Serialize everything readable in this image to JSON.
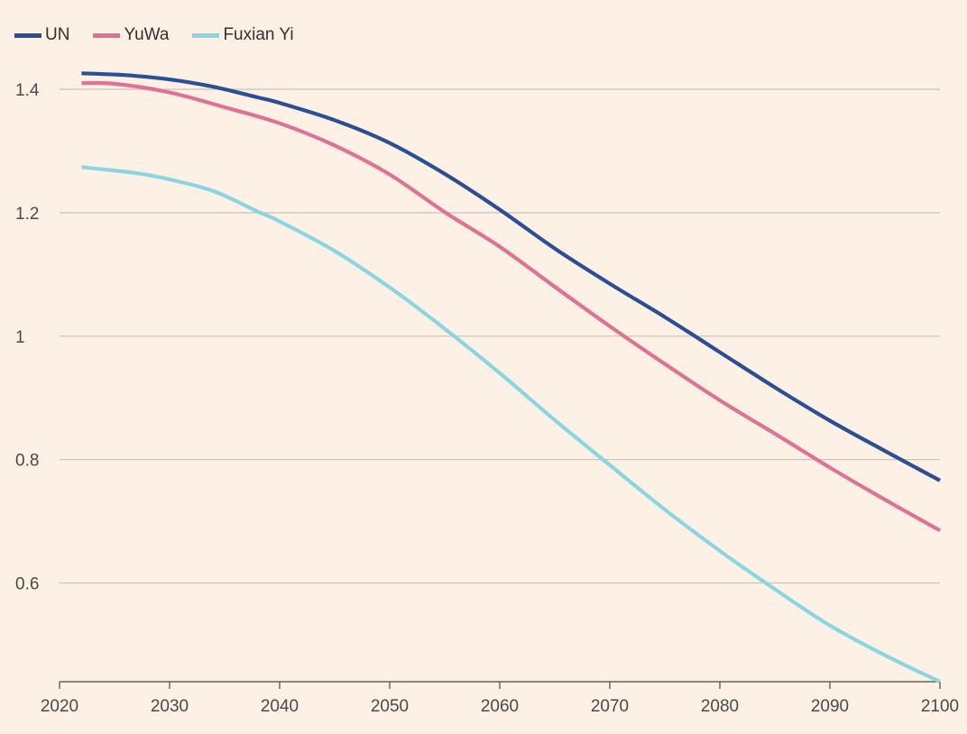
{
  "chart_data": {
    "type": "line",
    "title": "",
    "xlabel": "",
    "ylabel": "",
    "xlim": [
      2020,
      2100
    ],
    "ylim": [
      0.44,
      1.46
    ],
    "x_ticks": [
      2020,
      2030,
      2040,
      2050,
      2060,
      2070,
      2080,
      2090,
      2100
    ],
    "x_tick_labels": [
      "2020",
      "2030",
      "2040",
      "2050",
      "2060",
      "2070",
      "2080",
      "2090",
      "2100"
    ],
    "y_ticks": [
      0.6,
      0.8,
      1.0,
      1.2,
      1.4
    ],
    "y_tick_labels": [
      "0.6",
      "0.8",
      "1",
      "1.2",
      "1.4"
    ],
    "grid": "horizontal",
    "legend_position": "top-left",
    "series": [
      {
        "name": "UN",
        "color": "#2a4f94",
        "points": [
          [
            2022,
            1.426
          ],
          [
            2026,
            1.423
          ],
          [
            2030,
            1.416
          ],
          [
            2034,
            1.404
          ],
          [
            2038,
            1.387
          ],
          [
            2040,
            1.378
          ],
          [
            2045,
            1.35
          ],
          [
            2050,
            1.313
          ],
          [
            2055,
            1.263
          ],
          [
            2060,
            1.205
          ],
          [
            2065,
            1.142
          ],
          [
            2070,
            1.085
          ],
          [
            2075,
            1.031
          ],
          [
            2080,
            0.974
          ],
          [
            2085,
            0.917
          ],
          [
            2090,
            0.863
          ],
          [
            2095,
            0.814
          ],
          [
            2100,
            0.766
          ]
        ]
      },
      {
        "name": "YuWa",
        "color": "#de7194",
        "points": [
          [
            2022,
            1.41
          ],
          [
            2025,
            1.409
          ],
          [
            2030,
            1.395
          ],
          [
            2035,
            1.371
          ],
          [
            2040,
            1.345
          ],
          [
            2045,
            1.309
          ],
          [
            2050,
            1.262
          ],
          [
            2055,
            1.201
          ],
          [
            2060,
            1.145
          ],
          [
            2065,
            1.08
          ],
          [
            2070,
            1.016
          ],
          [
            2075,
            0.955
          ],
          [
            2080,
            0.896
          ],
          [
            2085,
            0.842
          ],
          [
            2090,
            0.787
          ],
          [
            2095,
            0.735
          ],
          [
            2100,
            0.685
          ]
        ]
      },
      {
        "name": "Fuxian Yi",
        "color": "#89d6e2",
        "points": [
          [
            2022,
            1.274
          ],
          [
            2027,
            1.264
          ],
          [
            2030,
            1.254
          ],
          [
            2034,
            1.235
          ],
          [
            2038,
            1.202
          ],
          [
            2040,
            1.186
          ],
          [
            2045,
            1.138
          ],
          [
            2050,
            1.079
          ],
          [
            2055,
            1.012
          ],
          [
            2060,
            0.94
          ],
          [
            2065,
            0.864
          ],
          [
            2070,
            0.791
          ],
          [
            2075,
            0.719
          ],
          [
            2080,
            0.652
          ],
          [
            2085,
            0.59
          ],
          [
            2090,
            0.531
          ],
          [
            2095,
            0.483
          ],
          [
            2100,
            0.44
          ]
        ]
      }
    ]
  }
}
